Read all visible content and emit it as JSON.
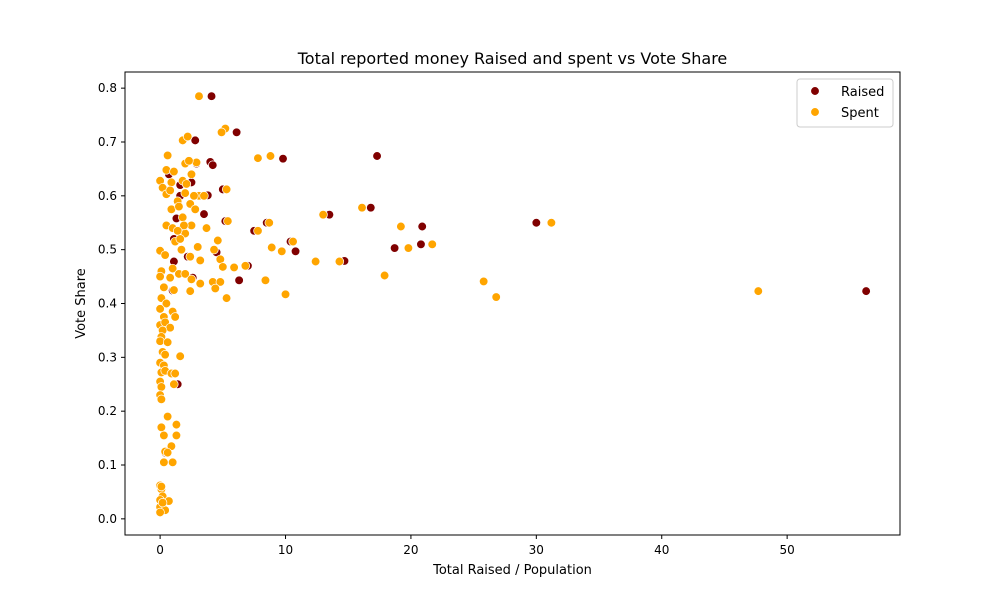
{
  "chart_data": {
    "type": "scatter",
    "title": "Total reported money Raised and spent vs Vote Share",
    "xlabel": "Total Raised / Population",
    "ylabel": "Vote Share",
    "xlim": [
      -2.8,
      59.0
    ],
    "ylim": [
      -0.03,
      0.83
    ],
    "xticks": [
      0,
      10,
      20,
      30,
      40,
      50
    ],
    "yticks": [
      0.0,
      0.1,
      0.2,
      0.3,
      0.4,
      0.5,
      0.6,
      0.7,
      0.8
    ],
    "grid": false,
    "legend": {
      "position": "top-right",
      "entries": [
        "Raised",
        "Spent"
      ]
    },
    "series": [
      {
        "name": "Raised",
        "color": "#800000",
        "points": [
          [
            4.1,
            0.785
          ],
          [
            6.1,
            0.718
          ],
          [
            2.8,
            0.703
          ],
          [
            4.0,
            0.663
          ],
          [
            4.2,
            0.657
          ],
          [
            9.8,
            0.669
          ],
          [
            17.3,
            0.674
          ],
          [
            2.5,
            0.625
          ],
          [
            3.8,
            0.601
          ],
          [
            5.0,
            0.612
          ],
          [
            16.8,
            0.578
          ],
          [
            0.7,
            0.64
          ],
          [
            1.6,
            0.6
          ],
          [
            1.3,
            0.558
          ],
          [
            3.5,
            0.566
          ],
          [
            13.5,
            0.565
          ],
          [
            30.0,
            0.55
          ],
          [
            20.9,
            0.543
          ],
          [
            8.5,
            0.55
          ],
          [
            5.2,
            0.553
          ],
          [
            4.5,
            0.495
          ],
          [
            7.5,
            0.535
          ],
          [
            1.8,
            0.54
          ],
          [
            10.4,
            0.515
          ],
          [
            10.8,
            0.497
          ],
          [
            18.7,
            0.503
          ],
          [
            20.8,
            0.51
          ],
          [
            1.1,
            0.478
          ],
          [
            2.2,
            0.487
          ],
          [
            2.6,
            0.448
          ],
          [
            7.0,
            0.47
          ],
          [
            14.7,
            0.479
          ],
          [
            6.3,
            0.443
          ],
          [
            1.0,
            0.424
          ],
          [
            56.3,
            0.423
          ],
          [
            1.4,
            0.25
          ],
          [
            1.1,
            0.52
          ],
          [
            2.9,
            0.66
          ],
          [
            1.6,
            0.62
          ],
          [
            0.4,
            0.123
          ]
        ]
      },
      {
        "name": "Spent",
        "color": "#FFA500",
        "points": [
          [
            3.1,
            0.785
          ],
          [
            5.2,
            0.725
          ],
          [
            4.9,
            0.718
          ],
          [
            1.8,
            0.703
          ],
          [
            2.2,
            0.71
          ],
          [
            7.8,
            0.67
          ],
          [
            8.8,
            0.674
          ],
          [
            2.9,
            0.662
          ],
          [
            2.0,
            0.66
          ],
          [
            2.3,
            0.665
          ],
          [
            0.6,
            0.675
          ],
          [
            0.5,
            0.648
          ],
          [
            1.1,
            0.645
          ],
          [
            2.5,
            0.64
          ],
          [
            0.0,
            0.628
          ],
          [
            0.2,
            0.615
          ],
          [
            0.9,
            0.625
          ],
          [
            1.8,
            0.628
          ],
          [
            2.1,
            0.622
          ],
          [
            5.3,
            0.612
          ],
          [
            3.1,
            0.6
          ],
          [
            3.5,
            0.6
          ],
          [
            0.5,
            0.603
          ],
          [
            1.4,
            0.59
          ],
          [
            2.0,
            0.605
          ],
          [
            2.4,
            0.585
          ],
          [
            0.9,
            0.575
          ],
          [
            1.5,
            0.58
          ],
          [
            2.8,
            0.575
          ],
          [
            16.1,
            0.578
          ],
          [
            13.0,
            0.565
          ],
          [
            1.8,
            0.56
          ],
          [
            19.2,
            0.543
          ],
          [
            31.2,
            0.55
          ],
          [
            8.7,
            0.55
          ],
          [
            5.4,
            0.553
          ],
          [
            0.5,
            0.545
          ],
          [
            1.0,
            0.54
          ],
          [
            2.5,
            0.545
          ],
          [
            3.7,
            0.54
          ],
          [
            7.8,
            0.535
          ],
          [
            2.0,
            0.53
          ],
          [
            1.2,
            0.515
          ],
          [
            4.6,
            0.517
          ],
          [
            10.6,
            0.515
          ],
          [
            1.7,
            0.5
          ],
          [
            3.0,
            0.505
          ],
          [
            4.3,
            0.5
          ],
          [
            8.9,
            0.504
          ],
          [
            9.7,
            0.497
          ],
          [
            19.8,
            0.503
          ],
          [
            21.7,
            0.51
          ],
          [
            0.0,
            0.498
          ],
          [
            0.4,
            0.49
          ],
          [
            2.4,
            0.487
          ],
          [
            4.8,
            0.482
          ],
          [
            12.4,
            0.478
          ],
          [
            14.3,
            0.478
          ],
          [
            5.0,
            0.468
          ],
          [
            5.9,
            0.467
          ],
          [
            6.8,
            0.47
          ],
          [
            0.1,
            0.46
          ],
          [
            1.0,
            0.465
          ],
          [
            1.5,
            0.455
          ],
          [
            2.0,
            0.455
          ],
          [
            17.9,
            0.452
          ],
          [
            0.0,
            0.45
          ],
          [
            0.8,
            0.448
          ],
          [
            2.5,
            0.445
          ],
          [
            3.2,
            0.437
          ],
          [
            4.2,
            0.44
          ],
          [
            4.8,
            0.44
          ],
          [
            8.4,
            0.443
          ],
          [
            25.8,
            0.441
          ],
          [
            0.3,
            0.43
          ],
          [
            1.1,
            0.425
          ],
          [
            2.4,
            0.423
          ],
          [
            4.4,
            0.428
          ],
          [
            26.8,
            0.412
          ],
          [
            47.7,
            0.423
          ],
          [
            10.0,
            0.417
          ],
          [
            5.3,
            0.41
          ],
          [
            0.1,
            0.41
          ],
          [
            0.5,
            0.4
          ],
          [
            0.0,
            0.39
          ],
          [
            1.0,
            0.385
          ],
          [
            0.3,
            0.375
          ],
          [
            1.2,
            0.375
          ],
          [
            0.0,
            0.36
          ],
          [
            0.4,
            0.365
          ],
          [
            0.8,
            0.355
          ],
          [
            0.2,
            0.35
          ],
          [
            0.1,
            0.338
          ],
          [
            0.0,
            0.33
          ],
          [
            0.6,
            0.328
          ],
          [
            0.2,
            0.31
          ],
          [
            0.4,
            0.305
          ],
          [
            1.6,
            0.302
          ],
          [
            0.0,
            0.29
          ],
          [
            0.3,
            0.285
          ],
          [
            0.1,
            0.272
          ],
          [
            0.4,
            0.275
          ],
          [
            0.9,
            0.27
          ],
          [
            1.2,
            0.27
          ],
          [
            0.0,
            0.255
          ],
          [
            1.1,
            0.25
          ],
          [
            0.1,
            0.245
          ],
          [
            0.0,
            0.23
          ],
          [
            0.1,
            0.222
          ],
          [
            0.6,
            0.19
          ],
          [
            1.3,
            0.175
          ],
          [
            0.1,
            0.17
          ],
          [
            0.3,
            0.155
          ],
          [
            1.3,
            0.155
          ],
          [
            0.9,
            0.135
          ],
          [
            0.4,
            0.125
          ],
          [
            0.6,
            0.123
          ],
          [
            0.3,
            0.105
          ],
          [
            1.0,
            0.105
          ],
          [
            0.0,
            0.062
          ],
          [
            0.1,
            0.055
          ],
          [
            0.2,
            0.042
          ],
          [
            0.0,
            0.035
          ],
          [
            0.7,
            0.033
          ],
          [
            0.0,
            0.022
          ],
          [
            0.4,
            0.016
          ],
          [
            0.0,
            0.012
          ],
          [
            0.1,
            0.06
          ],
          [
            0.2,
            0.03
          ],
          [
            1.6,
            0.52
          ],
          [
            3.2,
            0.48
          ],
          [
            2.7,
            0.6
          ],
          [
            0.8,
            0.61
          ],
          [
            1.9,
            0.545
          ],
          [
            1.4,
            0.535
          ]
        ]
      }
    ]
  }
}
